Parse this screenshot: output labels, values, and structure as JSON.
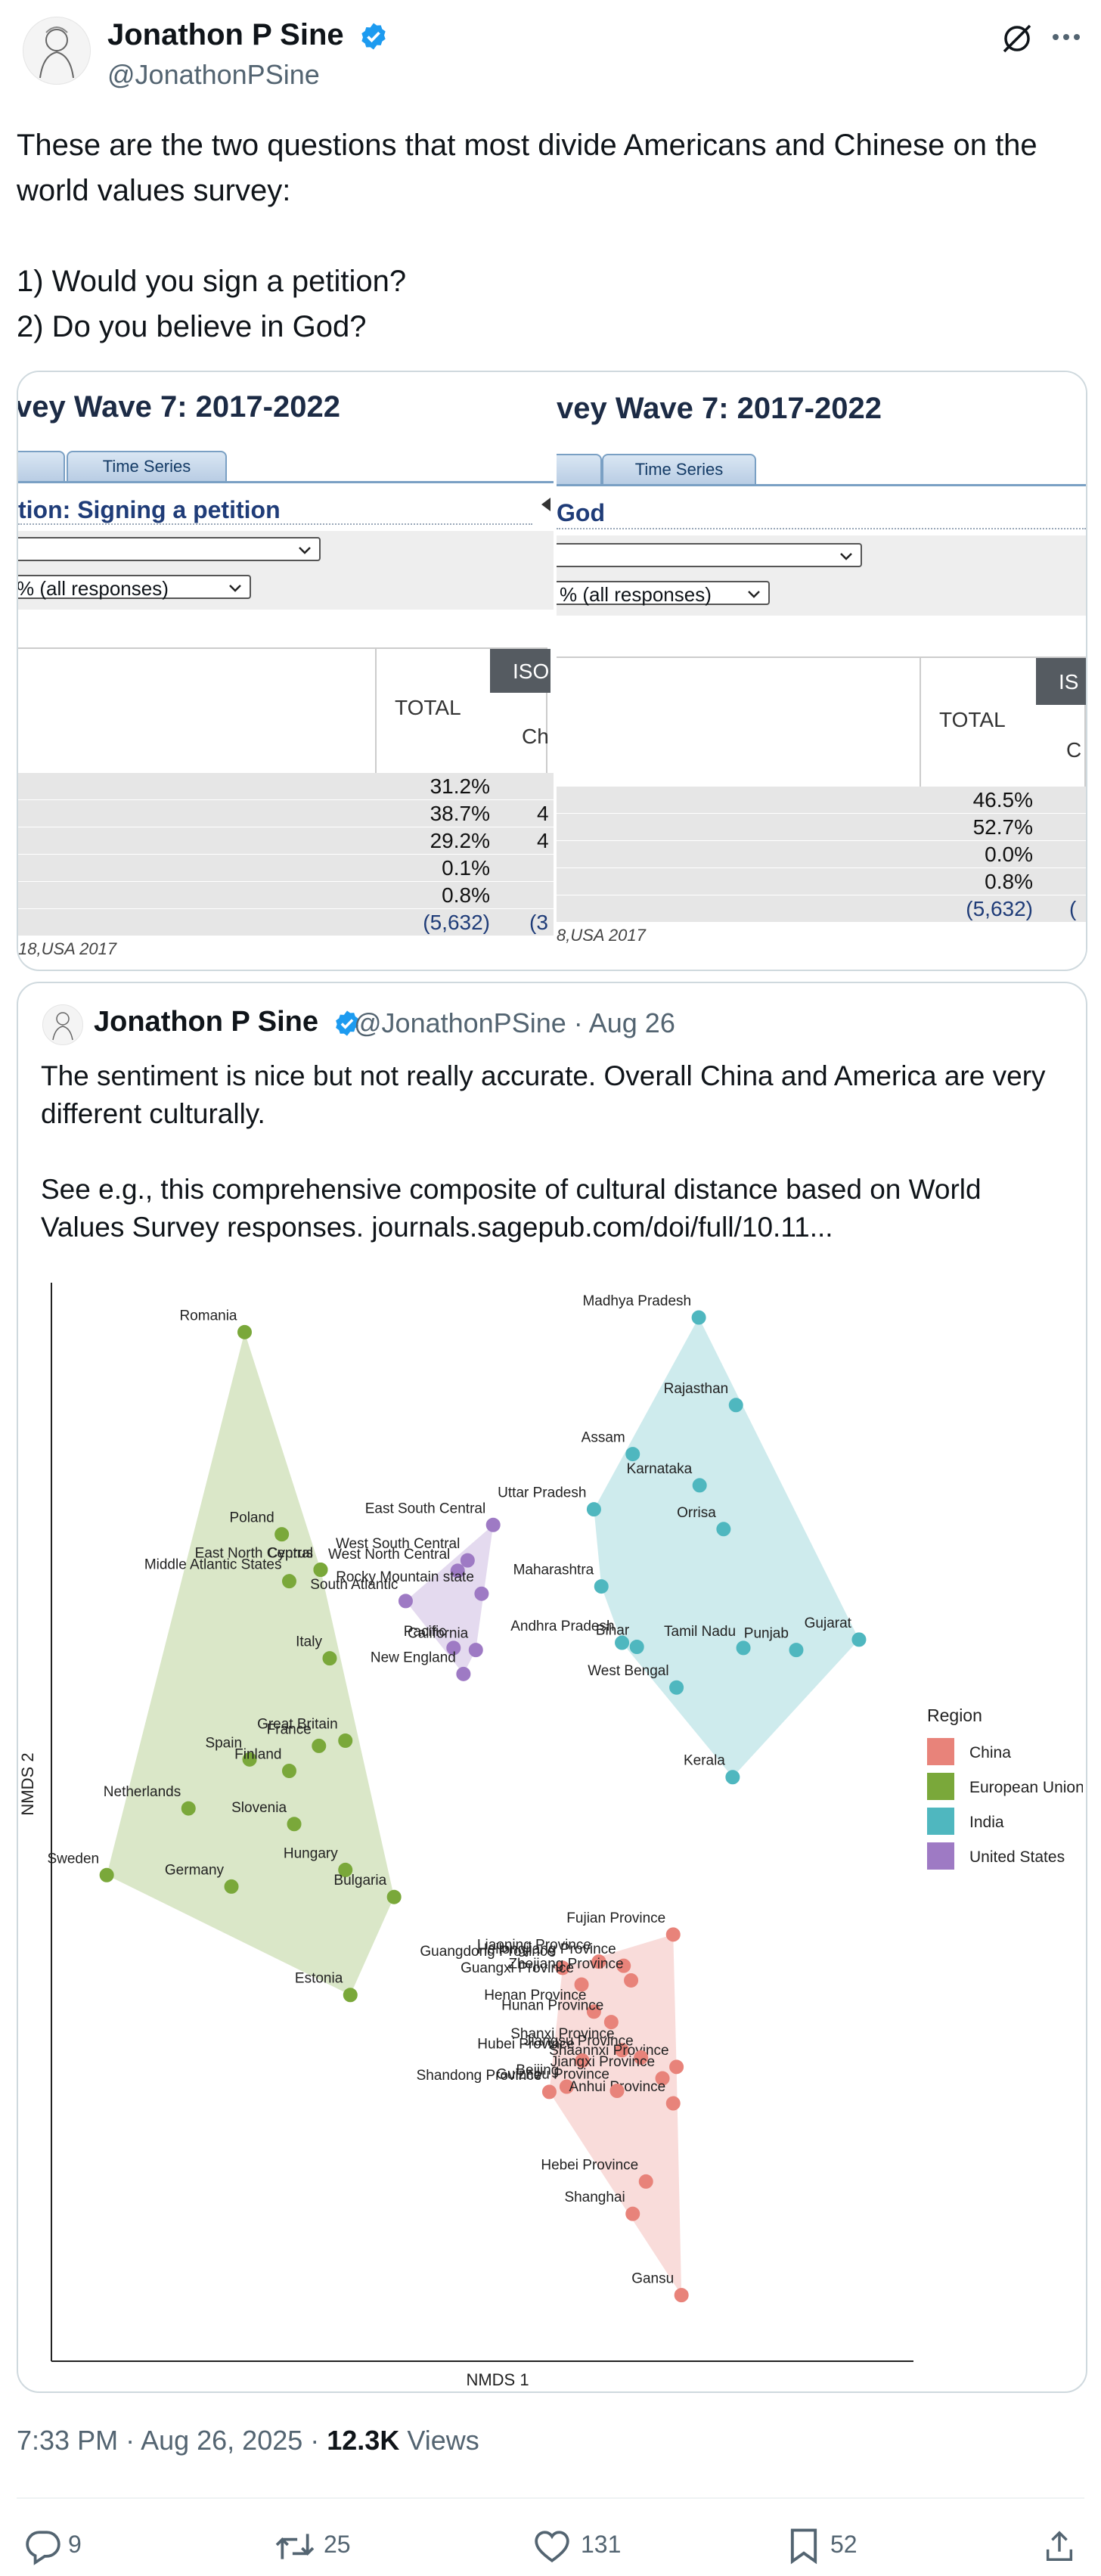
{
  "author": {
    "name": "Jonathon P Sine",
    "handle": "@JonathonPSine"
  },
  "tweet": {
    "text": "These are the two questions that most divide Americans and Chinese on the world values survey:\n\n1) Would you sign a petition?\n2) Do you believe in God?"
  },
  "screenshots": {
    "left": {
      "wave_title": "vey Wave 7: 2017-2022",
      "tab_label": "Time Series",
      "question": "tion: Signing a petition",
      "select_value": "% (all responses)",
      "col_total": "TOTAL",
      "col_iso": "ISO",
      "col_ch": "Ch",
      "values": [
        "31.2%",
        "38.7%",
        "29.2%",
        "0.1%",
        "0.8%",
        "(5,632)"
      ],
      "partial_values": [
        "4",
        "4",
        "(3"
      ],
      "footer": "18,USA 2017"
    },
    "right": {
      "wave_title": "vey Wave 7: 2017-2022",
      "tab_label": "Time Series",
      "question": "God",
      "select_value": "% (all responses)",
      "col_total": "TOTAL",
      "col_iso": "IS",
      "col_ch": "C",
      "values": [
        "46.5%",
        "52.7%",
        "0.0%",
        "0.8%",
        "(5,632)"
      ],
      "partial_values": [
        "("
      ],
      "footer": "8,USA 2017"
    }
  },
  "quoted": {
    "name": "Jonathon P Sine",
    "handle_date": "@JonathonPSine · Aug 26",
    "text": "The sentiment is nice but not really accurate. Overall China and America are very different culturally.\n\nSee e.g., this comprehensive composite of cultural distance based on World Values Survey responses. journals.sagepub.com/doi/full/10.11..."
  },
  "chart_data": {
    "type": "scatter",
    "title": "",
    "xlabel": "NMDS 1",
    "ylabel": "NMDS 2",
    "legend_title": "Region",
    "legend_position": "right",
    "grid": false,
    "xlim": [
      0,
      100
    ],
    "ylim": [
      0,
      100
    ],
    "series": [
      {
        "name": "China",
        "color": "#e8837a",
        "points": [
          {
            "label": "Fujian  Province",
            "x": 73.1,
            "y": 39.2
          },
          {
            "label": "Guangdong  Province",
            "x": 59.7,
            "y": 36.0
          },
          {
            "label": "Liaoning  Province",
            "x": 64.1,
            "y": 36.6
          },
          {
            "label": "Heilongjiang  Province",
            "x": 67.1,
            "y": 36.2
          },
          {
            "label": "Guangxi  Province",
            "x": 62.0,
            "y": 34.4
          },
          {
            "label": "Zhejiang  Province",
            "x": 68.0,
            "y": 34.8
          },
          {
            "label": "Henan  Province",
            "x": 63.5,
            "y": 31.8
          },
          {
            "label": "Hunan  Province",
            "x": 65.6,
            "y": 30.8
          },
          {
            "label": "Shanxi Province",
            "x": 66.9,
            "y": 28.1
          },
          {
            "label": "Shaannxi  Province",
            "x": 73.5,
            "y": 26.5
          },
          {
            "label": "Hubei  Province",
            "x": 62.1,
            "y": 27.1
          },
          {
            "label": "Jiangsu Province",
            "x": 69.2,
            "y": 27.4
          },
          {
            "label": "Jiangxi  Province",
            "x": 71.8,
            "y": 25.4
          },
          {
            "label": "Beijing",
            "x": 60.2,
            "y": 24.6
          },
          {
            "label": "Shandong  Province",
            "x": 58.1,
            "y": 24.1
          },
          {
            "label": "Anhui  Province",
            "x": 73.1,
            "y": 23.0
          },
          {
            "label": "Guizhou Province",
            "x": 66.3,
            "y": 24.2
          },
          {
            "label": "Hebei Province",
            "x": 69.8,
            "y": 15.5
          },
          {
            "label": "Shanghai",
            "x": 68.2,
            "y": 12.4
          },
          {
            "label": "Gansu",
            "x": 74.1,
            "y": 4.6
          }
        ]
      },
      {
        "name": "European Union",
        "color": "#7aa83a",
        "points": [
          {
            "label": "Romania",
            "x": 21.2,
            "y": 97.0
          },
          {
            "label": "Poland",
            "x": 25.7,
            "y": 77.6
          },
          {
            "label": "Cyprus",
            "x": 30.4,
            "y": 74.2
          },
          {
            "label": "East North Central",
            "x": 30.4,
            "y": 74.2
          },
          {
            "label": "Middle Atlantic States",
            "x": 26.6,
            "y": 73.1
          },
          {
            "label": "Italy",
            "x": 31.5,
            "y": 65.7
          },
          {
            "label": "Great Britain",
            "x": 33.4,
            "y": 57.8
          },
          {
            "label": "France",
            "x": 30.2,
            "y": 57.3
          },
          {
            "label": "Spain",
            "x": 21.8,
            "y": 56.0
          },
          {
            "label": "Finland",
            "x": 26.6,
            "y": 54.9
          },
          {
            "label": "Netherlands",
            "x": 14.4,
            "y": 51.3
          },
          {
            "label": "Slovenia",
            "x": 27.2,
            "y": 49.8
          },
          {
            "label": "Hungary",
            "x": 33.4,
            "y": 45.4
          },
          {
            "label": "Germany",
            "x": 19.6,
            "y": 43.8
          },
          {
            "label": "Sweden",
            "x": 4.5,
            "y": 44.9
          },
          {
            "label": "Bulgaria",
            "x": 39.3,
            "y": 42.8
          },
          {
            "label": "Estonia",
            "x": 34.0,
            "y": 33.4
          }
        ]
      },
      {
        "name": "India",
        "color": "#4fb7bf",
        "points": [
          {
            "label": "Madhya Pradesh",
            "x": 76.2,
            "y": 98.4
          },
          {
            "label": "Rajasthan",
            "x": 80.7,
            "y": 90.0
          },
          {
            "label": "Assam",
            "x": 68.2,
            "y": 85.3
          },
          {
            "label": "Uttar Pradesh",
            "x": 63.5,
            "y": 80.0
          },
          {
            "label": "Karnataka",
            "x": 76.3,
            "y": 82.3
          },
          {
            "label": "Orrisa",
            "x": 79.2,
            "y": 78.1
          },
          {
            "label": "Maharashtra",
            "x": 64.4,
            "y": 72.6
          },
          {
            "label": "Andhra Pradesh",
            "x": 66.9,
            "y": 67.2
          },
          {
            "label": "Bihar",
            "x": 68.7,
            "y": 66.8
          },
          {
            "label": "Tamil Nadu",
            "x": 81.6,
            "y": 66.7
          },
          {
            "label": "Gujarat",
            "x": 95.6,
            "y": 67.5
          },
          {
            "label": "Punjab",
            "x": 88.0,
            "y": 66.5
          },
          {
            "label": "West Bengal",
            "x": 73.5,
            "y": 62.9
          },
          {
            "label": "Kerala",
            "x": 80.3,
            "y": 54.3
          }
        ]
      },
      {
        "name": "United States",
        "color": "#9e7ac4",
        "points": [
          {
            "label": "East South Central",
            "x": 51.3,
            "y": 78.5
          },
          {
            "label": "West South Central",
            "x": 48.2,
            "y": 75.1
          },
          {
            "label": "West North Central",
            "x": 47.0,
            "y": 74.1
          },
          {
            "label": "Rocky Mountain state",
            "x": 49.9,
            "y": 71.9
          },
          {
            "label": "South Atlantic",
            "x": 40.7,
            "y": 71.2
          },
          {
            "label": "Pacific",
            "x": 46.5,
            "y": 66.7
          },
          {
            "label": "California",
            "x": 49.2,
            "y": 66.5
          },
          {
            "label": "New England",
            "x": 47.7,
            "y": 64.2
          }
        ]
      }
    ]
  },
  "tweet_meta": {
    "time": "7:33 PM · Aug 26, 2025 · ",
    "views_count": "12.3K",
    "views_label": " Views"
  },
  "actions": {
    "replies": "9",
    "reposts": "25",
    "likes": "131",
    "bookmarks": "52"
  }
}
